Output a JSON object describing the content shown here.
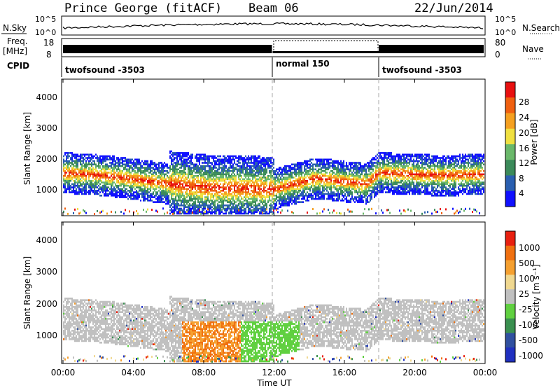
{
  "header": {
    "radar": "Prince George (fitACF)",
    "beam": "Beam 06",
    "date": "22/Jun/2014"
  },
  "panels": {
    "nsky_label": "N.Sky",
    "nsearch_label": "N.Search",
    "freq_label": "Freq.",
    "freq_unit": "[MHz]",
    "nave_label": "Nave",
    "cpid_label": "CPID",
    "noise_ticks_left": [
      "10^5",
      "10^0"
    ],
    "noise_ticks_right": [
      "10^5",
      "10^0"
    ],
    "freq_ticks_left": [
      "18",
      "8"
    ],
    "nave_ticks_right": [
      "80",
      "0"
    ],
    "cpid_segments": [
      "twofsound -3503",
      "normal 150",
      "twofsound -3503"
    ]
  },
  "chart_data": [
    {
      "type": "heatmap",
      "name": "power",
      "ylabel": "Slant Range [km]",
      "yticks": [
        "1000",
        "2000",
        "3000",
        "4000"
      ],
      "xticks": [
        "00:00",
        "04:00",
        "08:00",
        "12:00",
        "16:00",
        "20:00",
        "00:00"
      ],
      "colorbar": {
        "label": "Power [dB]",
        "ticks": [
          "4",
          "8",
          "12",
          "16",
          "20",
          "24",
          "28"
        ],
        "colors": [
          "#1010ff",
          "#2a5fb0",
          "#3b8a5a",
          "#6ab86a",
          "#f0e040",
          "#f5a020",
          "#f06010",
          "#e81010"
        ]
      }
    },
    {
      "type": "heatmap",
      "name": "velocity",
      "ylabel": "Slant Range [km]",
      "yticks": [
        "1000",
        "2000",
        "3000",
        "4000"
      ],
      "xticks": [
        "00:00",
        "04:00",
        "08:00",
        "12:00",
        "16:00",
        "20:00",
        "00:00"
      ],
      "xlabel": "Time UT",
      "colorbar": {
        "label": "Velocity [m s⁻¹]",
        "ticks": [
          "1000",
          "500",
          "100",
          "25",
          "-25",
          "-100",
          "-500",
          "-1000"
        ],
        "colors": [
          "#2030c0",
          "#3050a0",
          "#3a9050",
          "#60d040",
          "#c0c0c0",
          "#f0d890",
          "#f5a030",
          "#f07010",
          "#e82010"
        ]
      }
    }
  ]
}
